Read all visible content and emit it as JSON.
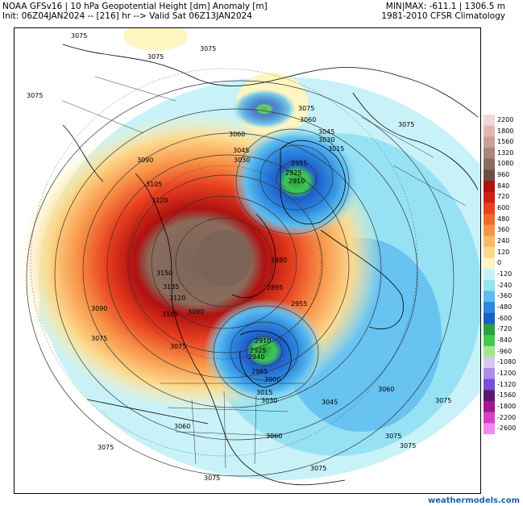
{
  "header": {
    "line1_left": "NOAA GFSv16 | 10 hPa Geopotential Height [dm] Anomaly [m]",
    "line2_left": "Init: 06Z04JAN2024 -- [216] hr --> Valid Sat 06Z13JAN2024",
    "line1_right": "MIN|MAX: -611.1 | 1306.5 m",
    "line2_right": "1981-2010 CFSR Climatology"
  },
  "colorbar": {
    "labels": [
      "2200",
      "1800",
      "1560",
      "1320",
      "1080",
      "960",
      "840",
      "720",
      "600",
      "480",
      "360",
      "240",
      "120",
      "0",
      "-120",
      "-240",
      "-360",
      "-480",
      "-600",
      "-720",
      "-840",
      "-960",
      "-1080",
      "-1200",
      "-1320",
      "-1560",
      "-1800",
      "-2200",
      "-2600"
    ],
    "colors": [
      "#f0d8d8",
      "#e0b8b0",
      "#c8a098",
      "#a88878",
      "#8a6c5c",
      "#6a5044",
      "#b01010",
      "#d02018",
      "#e84020",
      "#f06a2a",
      "#f89448",
      "#fbb868",
      "#fdd98c",
      "#fff5c0",
      "#c8f2f8",
      "#96e2f4",
      "#5cbcf0",
      "#2c88e0",
      "#1e5cc8",
      "#2aa040",
      "#40c850",
      "#a0e890",
      "#d8c8f0",
      "#a890e8",
      "#7a50d8",
      "#5a1870",
      "#a01890",
      "#d840c8",
      "#f088f0"
    ]
  },
  "contour_labels": [
    {
      "t": "3075"
    },
    {
      "t": "3075"
    },
    {
      "t": "3075"
    },
    {
      "t": "3075"
    },
    {
      "t": "3090"
    },
    {
      "t": "3105"
    },
    {
      "t": "3120"
    },
    {
      "t": "3060"
    },
    {
      "t": "3045"
    },
    {
      "t": "3030"
    },
    {
      "t": "3075"
    },
    {
      "t": "3060"
    },
    {
      "t": "3045"
    },
    {
      "t": "3030"
    },
    {
      "t": "3015"
    },
    {
      "t": "2955"
    },
    {
      "t": "2925"
    },
    {
      "t": "2910"
    },
    {
      "t": "3075"
    },
    {
      "t": "3150"
    },
    {
      "t": "3135"
    },
    {
      "t": "3120"
    },
    {
      "t": "3105"
    },
    {
      "t": "3090"
    },
    {
      "t": "3090"
    },
    {
      "t": "2880"
    },
    {
      "t": "2895"
    },
    {
      "t": "2955"
    },
    {
      "t": "3075"
    },
    {
      "t": "3075"
    },
    {
      "t": "2910"
    },
    {
      "t": "2925"
    },
    {
      "t": "2940"
    },
    {
      "t": "2985"
    },
    {
      "t": "3000"
    },
    {
      "t": "3015"
    },
    {
      "t": "3030"
    },
    {
      "t": "3045"
    },
    {
      "t": "3060"
    },
    {
      "t": "3075"
    },
    {
      "t": "3060"
    },
    {
      "t": "3075"
    },
    {
      "t": "3060"
    },
    {
      "t": "3075"
    },
    {
      "t": "3075"
    },
    {
      "t": "3075"
    },
    {
      "t": "3075"
    }
  ],
  "credit": "weathermodels.com"
}
